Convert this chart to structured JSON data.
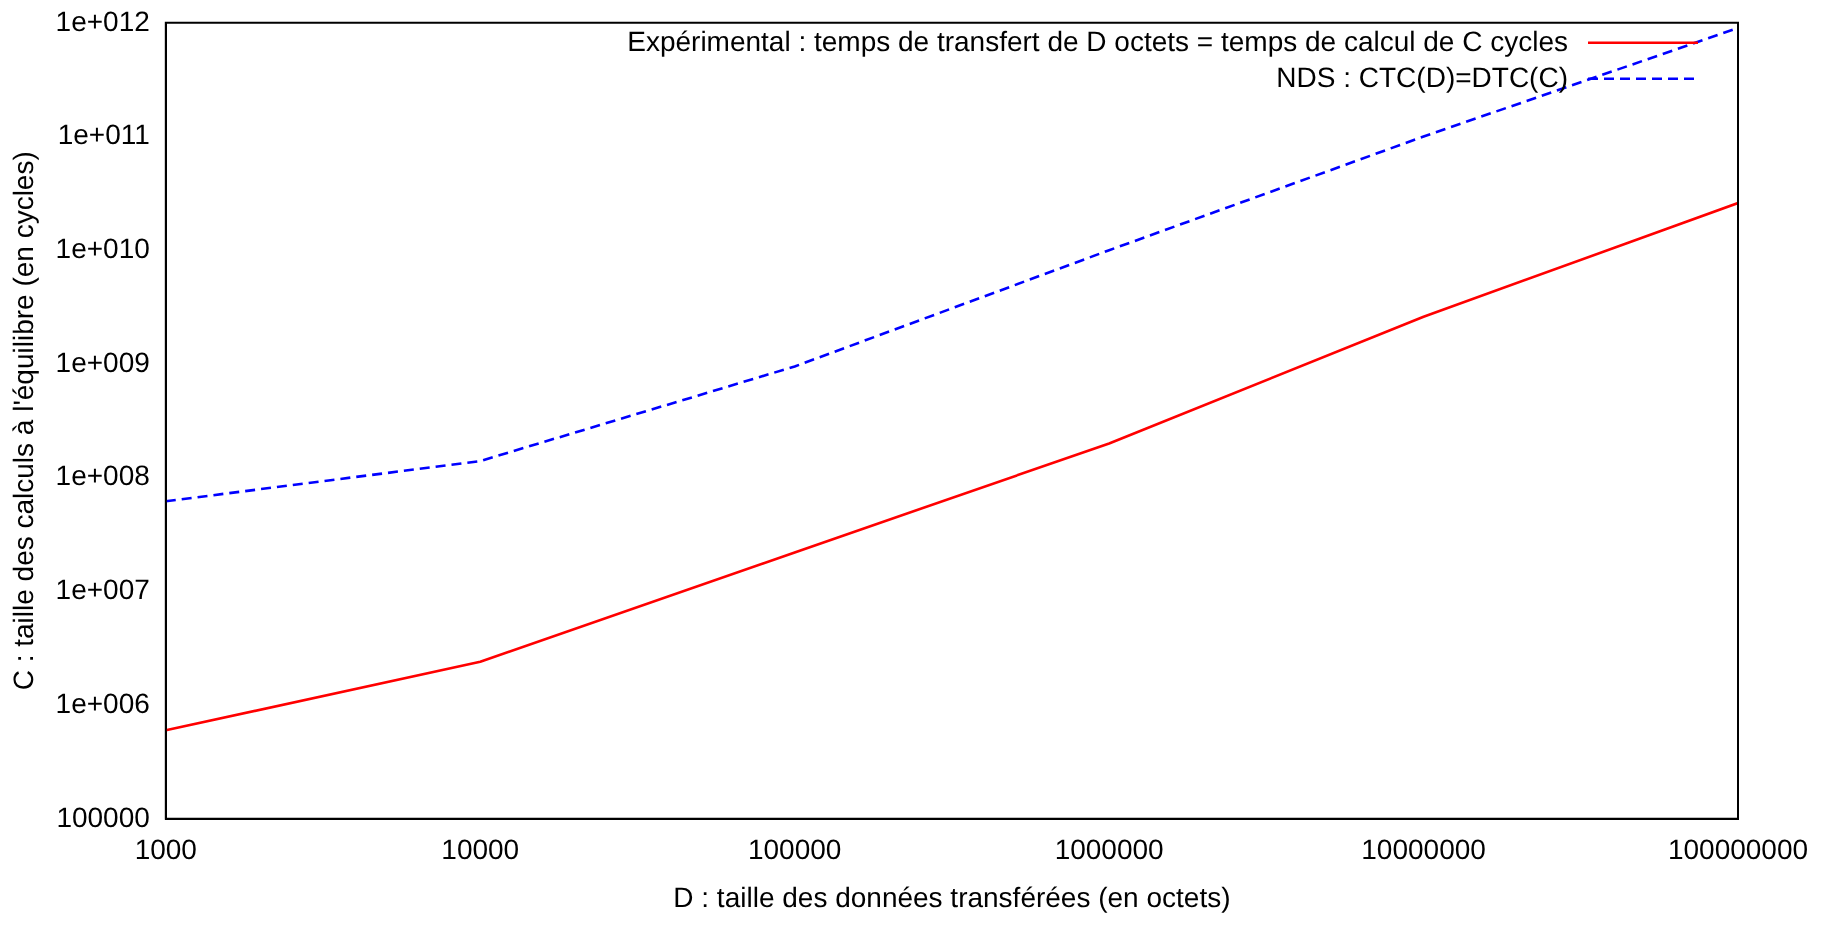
{
  "chart_data": {
    "type": "line",
    "xlabel": "D : taille des données transférées (en octets)",
    "ylabel": "C : taille des calculs à l'équilibre (en cycles)",
    "x": [
      1000,
      10000,
      100000,
      1000000,
      10000000,
      100000000
    ],
    "series": [
      {
        "name": "Expérimental : temps de transfert de D octets = temps de calcul de C cycles",
        "color": "#ff0000",
        "line_style": "solid",
        "values": [
          600000,
          2400000,
          22000000,
          200000000,
          2600000000,
          26000000000
        ]
      },
      {
        "name": "NDS : CTC(D)=DTC(C)",
        "color": "#0000ff",
        "line_style": "dashed",
        "values": [
          62000000,
          140000000,
          950000000,
          10000000000,
          100000000000,
          900000000000
        ]
      }
    ],
    "log": "xy",
    "xlim": [
      1000,
      100000000
    ],
    "xticks": [
      1000,
      10000,
      100000,
      1000000,
      10000000,
      100000000
    ],
    "ylim": [
      100000,
      1000000000000
    ],
    "yticks": [
      100000,
      {
        "value": 1000000,
        "label": "1e+006"
      },
      {
        "value": 10000000,
        "label": "1e+007"
      },
      {
        "value": 100000000,
        "label": "1e+008"
      },
      {
        "value": 1000000000,
        "label": "1e+009"
      },
      {
        "value": 10000000000,
        "label": "1e+010"
      },
      {
        "value": 100000000000,
        "label": "1e+011"
      },
      {
        "value": 1000000000000,
        "label": "1e+012"
      }
    ],
    "grid": false,
    "legend": "top right",
    "marker": "none"
  }
}
